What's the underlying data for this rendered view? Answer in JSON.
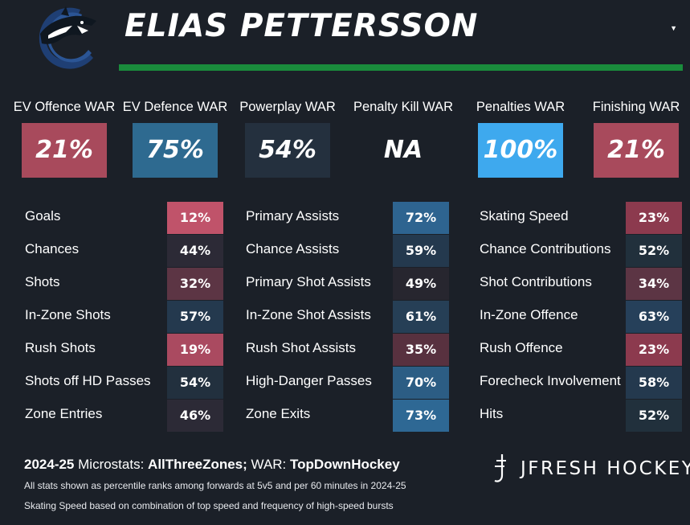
{
  "header": {
    "player_name": "ELIAS PETTERSSON",
    "logo_icon": "canucks-orca-icon",
    "caret_icon": "caret-down-icon",
    "accent_color": "#1a8c3c"
  },
  "war": [
    {
      "label": "EV Offence WAR",
      "value": "21%",
      "color": "#a84a5c"
    },
    {
      "label": "EV Defence WAR",
      "value": "75%",
      "color": "#2e6a90"
    },
    {
      "label": "Powerplay WAR",
      "value": "54%",
      "color": "#24303e"
    },
    {
      "label": "Penalty Kill WAR",
      "value": "NA",
      "color": "#1b2028"
    },
    {
      "label": "Penalties WAR",
      "value": "100%",
      "color": "#3ea9ee"
    },
    {
      "label": "Finishing WAR",
      "value": "21%",
      "color": "#a84a5c"
    }
  ],
  "stats": {
    "left": [
      {
        "label": "Goals",
        "value": "12%",
        "color": "#c0536a"
      },
      {
        "label": "Chances",
        "value": "44%",
        "color": "#2c2a36"
      },
      {
        "label": "Shots",
        "value": "32%",
        "color": "#5c3544"
      },
      {
        "label": "In-Zone Shots",
        "value": "57%",
        "color": "#24394e"
      },
      {
        "label": "Rush Shots",
        "value": "19%",
        "color": "#aa4a60"
      },
      {
        "label": "Shots off HD Passes",
        "value": "54%",
        "color": "#22303e"
      },
      {
        "label": "Zone Entries",
        "value": "46%",
        "color": "#2c2a36"
      }
    ],
    "middle": [
      {
        "label": "Primary Assists",
        "value": "72%",
        "color": "#2e6490"
      },
      {
        "label": "Chance Assists",
        "value": "59%",
        "color": "#24394e"
      },
      {
        "label": "Primary Shot Assists",
        "value": "49%",
        "color": "#27262f"
      },
      {
        "label": "In-Zone Shot Assists",
        "value": "61%",
        "color": "#263f56"
      },
      {
        "label": "Rush Shot Assists",
        "value": "35%",
        "color": "#58313f"
      },
      {
        "label": "High-Danger Passes",
        "value": "70%",
        "color": "#2c5d84"
      },
      {
        "label": "Zone Exits",
        "value": "73%",
        "color": "#2e6894"
      }
    ],
    "right": [
      {
        "label": "Skating Speed",
        "value": "23%",
        "color": "#8c3a4e"
      },
      {
        "label": "Chance Contributions",
        "value": "52%",
        "color": "#21303c"
      },
      {
        "label": "Shot Contributions",
        "value": "34%",
        "color": "#5c3544"
      },
      {
        "label": "In-Zone Offence",
        "value": "63%",
        "color": "#26405a"
      },
      {
        "label": "Rush Offence",
        "value": "23%",
        "color": "#8c3a4e"
      },
      {
        "label": "Forecheck Involvement",
        "value": "58%",
        "color": "#24394e"
      },
      {
        "label": "Hits",
        "value": "52%",
        "color": "#21303c"
      }
    ]
  },
  "footer": {
    "season": "2024-25",
    "microstats_label": "Microstats:",
    "microstats_source": "AllThreeZones;",
    "war_label": "WAR:",
    "war_source": "TopDownHockey",
    "note_1": "All stats shown as percentile ranks among forwards at 5v5 and per 60 minutes in 2024-25",
    "note_2": "Skating Speed based on combination of top speed and frequency of high-speed bursts",
    "brand": "JFRESH HOCKEY",
    "brand_icon": "jfresh-j-icon"
  }
}
